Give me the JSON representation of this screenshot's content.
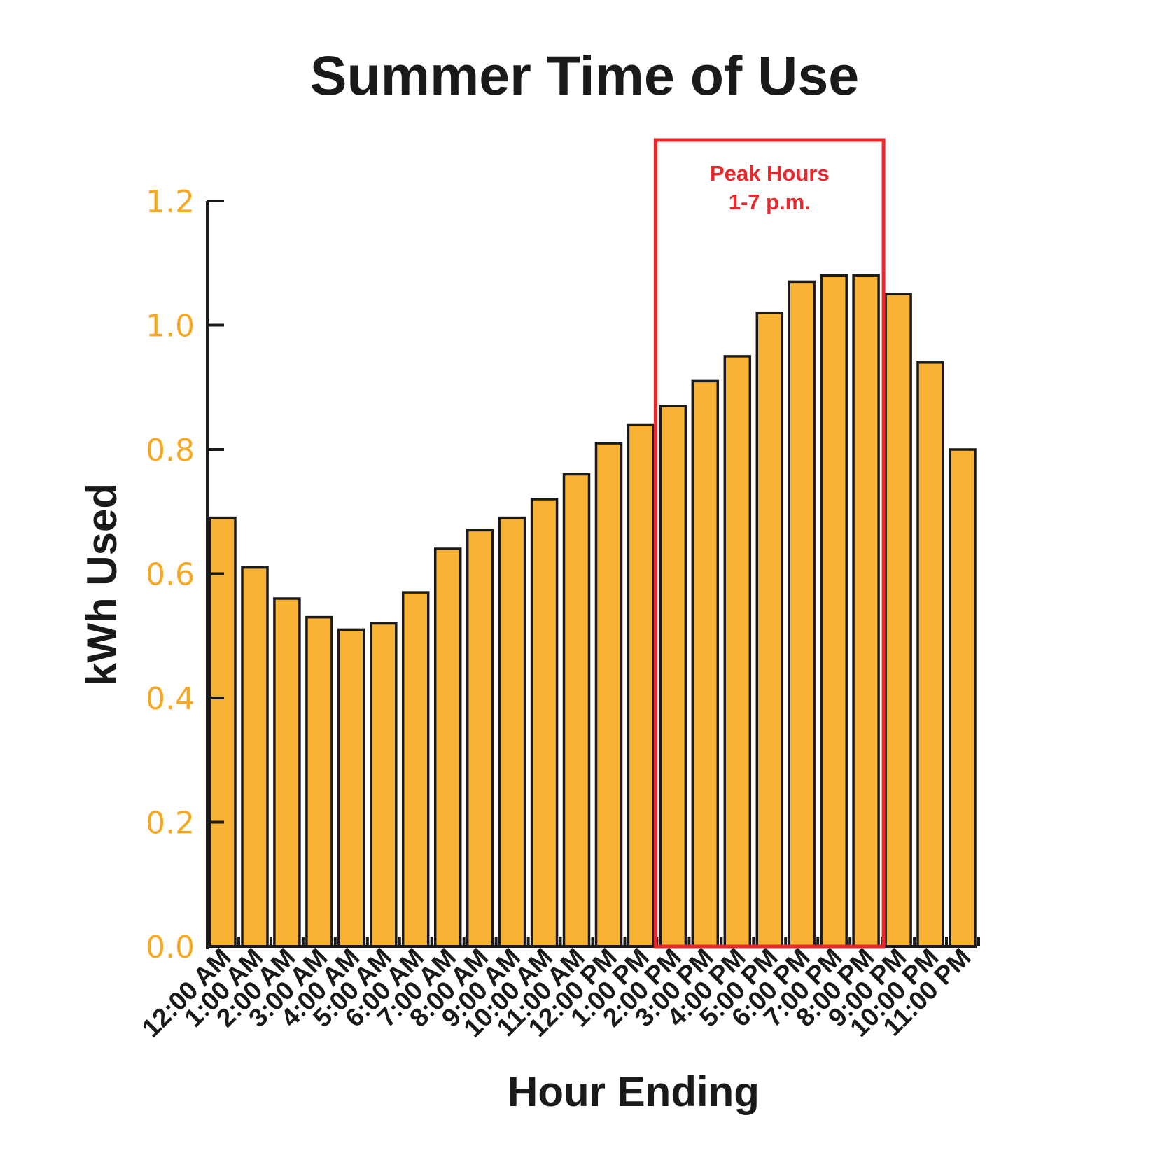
{
  "chart_data": {
    "type": "bar",
    "title": "Summer Time of Use",
    "xlabel": "Hour Ending",
    "ylabel": "kWh Used",
    "ylim": [
      0,
      1.2
    ],
    "yticks": [
      "0.0",
      "0.2",
      "0.4",
      "0.6",
      "0.8",
      "1.0",
      "1.2"
    ],
    "grid": false,
    "categories": [
      "12:00 AM",
      "1:00 AM",
      "2:00 AM",
      "3:00 AM",
      "4:00 AM",
      "5:00 AM",
      "6:00 AM",
      "7:00 AM",
      "8:00 AM",
      "9:00 AM",
      "10:00 AM",
      "11:00 AM",
      "12:00 PM",
      "1:00 PM",
      "2:00 PM",
      "3:00 PM",
      "4:00 PM",
      "5:00 PM",
      "6:00 PM",
      "7:00 PM",
      "8:00 PM",
      "9:00 PM",
      "10:00 PM",
      "11:00 PM"
    ],
    "values": [
      0.69,
      0.61,
      0.56,
      0.53,
      0.51,
      0.52,
      0.57,
      0.64,
      0.67,
      0.69,
      0.72,
      0.76,
      0.81,
      0.84,
      0.87,
      0.91,
      0.95,
      1.02,
      1.07,
      1.08,
      1.08,
      1.05,
      0.94,
      0.8
    ],
    "annotations": [
      {
        "lines": [
          "Peak Hours",
          "1-7 p.m."
        ],
        "from_category": "2:00 PM",
        "to_category": "8:00 PM",
        "color": "#e8282b"
      }
    ],
    "colors": {
      "bar_fill": "#f9b233",
      "bar_stroke": "#1a1a1a",
      "tick_label": "#f7a823",
      "highlight": "#e8282b"
    }
  }
}
